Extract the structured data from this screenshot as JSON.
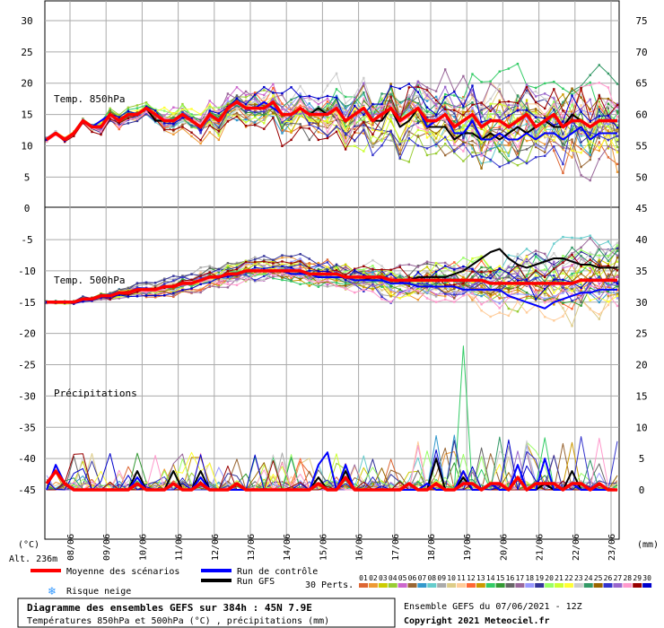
{
  "chart_data": {
    "type": "line",
    "title": "Diagramme des ensembles GEFS sur 384h : 45N 7.9E",
    "subtitle": "Températures 850hPa et 500hPa (°C) , précipitations (mm)",
    "run_label": "Ensemble GEFS du 07/06/2021 - 12Z",
    "copyright": "Copyright 2021 Meteociel.fr",
    "altitude": "Alt. 236m",
    "left_unit": "(°C)",
    "right_unit": "(mm)",
    "dates": [
      "08/06",
      "09/06",
      "10/06",
      "11/06",
      "12/06",
      "13/06",
      "14/06",
      "15/06",
      "16/06",
      "17/06",
      "18/06",
      "19/06",
      "20/06",
      "21/06",
      "22/06",
      "23/06"
    ],
    "left_ticks": [
      {
        "v": 30,
        "label": "30"
      },
      {
        "v": 25,
        "label": "25"
      },
      {
        "v": 20,
        "label": "20"
      },
      {
        "v": 15,
        "label": "15"
      },
      {
        "v": 10,
        "label": "10"
      },
      {
        "v": 5,
        "label": "5"
      },
      {
        "v": 0,
        "label": "0"
      },
      {
        "v": -5,
        "label": "-5"
      },
      {
        "v": -10,
        "label": "-10"
      },
      {
        "v": -15,
        "label": "-15"
      },
      {
        "v": -20,
        "label": "-20"
      },
      {
        "v": -25,
        "label": "-25"
      },
      {
        "v": -30,
        "label": "-30"
      },
      {
        "v": -35,
        "label": "-35"
      },
      {
        "v": -40,
        "label": "-40"
      },
      {
        "v": -45,
        "label": "-45"
      }
    ],
    "right_ticks": [
      {
        "v": 30,
        "label": "75"
      },
      {
        "v": 25,
        "label": "70"
      },
      {
        "v": 20,
        "label": "65"
      },
      {
        "v": 15,
        "label": "60"
      },
      {
        "v": 10,
        "label": "55"
      },
      {
        "v": 5,
        "label": "50"
      },
      {
        "v": 0,
        "label": "45"
      },
      {
        "v": -5,
        "label": "40"
      },
      {
        "v": -10,
        "label": "35"
      },
      {
        "v": -15,
        "label": "30"
      },
      {
        "v": -20,
        "label": "25"
      },
      {
        "v": -25,
        "label": "20"
      },
      {
        "v": -30,
        "label": "15"
      },
      {
        "v": -35,
        "label": "10"
      },
      {
        "v": -40,
        "label": "5"
      },
      {
        "v": -45,
        "label": "0"
      }
    ],
    "panel_labels": [
      "Temp. 850hPa",
      "Temp. 500hPa",
      "Précipitations"
    ],
    "legend": {
      "mean": {
        "label": "Moyenne des scénarios",
        "color": "#ff0000"
      },
      "control": {
        "label": "Run de contrôle",
        "color": "#0000ff"
      },
      "gfs": {
        "label": "Run GFS",
        "color": "#000000"
      },
      "snow": {
        "label": "Risque neige",
        "icon": "snowflake-icon",
        "color": "#3399ff"
      },
      "perts_label": "30 Perts.",
      "perts": [
        "01",
        "02",
        "03",
        "04",
        "05",
        "06",
        "07",
        "08",
        "09",
        "10",
        "11",
        "12",
        "13",
        "14",
        "15",
        "16",
        "17",
        "18",
        "19",
        "20",
        "21",
        "22",
        "23",
        "24",
        "25",
        "26",
        "27",
        "28",
        "29",
        "30"
      ],
      "pert_colors": [
        "#dd6633",
        "#ee9933",
        "#cccc00",
        "#99cc33",
        "#cc66cc",
        "#996633",
        "#3399cc",
        "#66cccc",
        "#aaaaaa",
        "#ddcc88",
        "#ffcc99",
        "#ff6633",
        "#cc9900",
        "#33cc66",
        "#339933",
        "#666666",
        "#996699",
        "#9999ff",
        "#333399",
        "#99ff66",
        "#ccff33",
        "#ffff33",
        "#cccccc",
        "#339966",
        "#996600",
        "#3333cc",
        "#9966cc",
        "#ff99cc",
        "#990000",
        "#0000cc"
      ]
    },
    "series_t850": {
      "mean": [
        11,
        12,
        11,
        12,
        14,
        13,
        13,
        15,
        14,
        15,
        15,
        16,
        15,
        14,
        14,
        15,
        14,
        13,
        15,
        14,
        16,
        17,
        16,
        16,
        16,
        17,
        15,
        15,
        16,
        15,
        15,
        15,
        16,
        14,
        15,
        16,
        14,
        15,
        16,
        14,
        15,
        16,
        14,
        14,
        15,
        13,
        14,
        15,
        13,
        14,
        14,
        13,
        14,
        15,
        13,
        14,
        15,
        13,
        14,
        14,
        13,
        14,
        14,
        14
      ],
      "control": [
        11,
        12,
        11,
        12,
        14,
        13,
        14,
        15,
        14,
        15,
        15,
        16,
        15,
        14,
        14,
        15,
        14,
        13,
        15,
        14,
        16,
        17,
        16,
        16,
        17,
        16,
        15,
        15,
        16,
        15,
        15,
        15,
        16,
        14,
        15,
        16,
        14,
        15,
        16,
        14,
        15,
        16,
        13,
        14,
        15,
        12,
        12,
        14,
        11,
        11,
        12,
        11,
        11,
        12,
        11,
        12,
        12,
        11,
        12,
        13,
        11,
        12,
        12,
        12
      ],
      "gfs": [
        11,
        12,
        11,
        12,
        14,
        13,
        13,
        15,
        14,
        15,
        15,
        16,
        14,
        14,
        14,
        15,
        14,
        13,
        15,
        14,
        16,
        17,
        16,
        16,
        16,
        17,
        15,
        15,
        16,
        15,
        16,
        15,
        16,
        14,
        15,
        16,
        14,
        14,
        16,
        13,
        14,
        16,
        13,
        13,
        13,
        11,
        12,
        12,
        11,
        12,
        11,
        12,
        13,
        12,
        13,
        14,
        13,
        13,
        15,
        14,
        13,
        14,
        14,
        14
      ]
    },
    "series_t500": {
      "mean": [
        -15,
        -15,
        -15,
        -15,
        -14.5,
        -14.5,
        -14,
        -14,
        -13.5,
        -13.5,
        -13,
        -13,
        -13,
        -12.5,
        -12.5,
        -12,
        -12,
        -11.5,
        -11,
        -11,
        -10.5,
        -10.5,
        -10,
        -10,
        -10,
        -10,
        -10,
        -10,
        -10,
        -10.5,
        -10.5,
        -10.5,
        -10.5,
        -11,
        -11,
        -11,
        -11,
        -11,
        -11.5,
        -11.5,
        -11.5,
        -11.5,
        -11.5,
        -11.5,
        -11.5,
        -11.5,
        -11.5,
        -11.5,
        -11.5,
        -12,
        -12,
        -12,
        -12,
        -12,
        -12,
        -12,
        -12,
        -12,
        -12,
        -11.5,
        -11.5,
        -11.5,
        -11.5,
        -11.5
      ],
      "control": [
        -15,
        -15,
        -15,
        -15,
        -14.5,
        -14.5,
        -14,
        -14,
        -13.5,
        -13.5,
        -13,
        -13,
        -13,
        -12.5,
        -12.5,
        -12,
        -12,
        -11.5,
        -11,
        -11,
        -10.5,
        -10.5,
        -10,
        -10,
        -10,
        -10,
        -10,
        -10.5,
        -10.5,
        -10.5,
        -11,
        -11,
        -11,
        -11,
        -11.5,
        -11.5,
        -11.5,
        -11.5,
        -12,
        -12,
        -12,
        -12.5,
        -12.5,
        -12.5,
        -12.5,
        -12.5,
        -13,
        -13,
        -13,
        -13,
        -13,
        -14,
        -14.5,
        -15,
        -15.5,
        -16,
        -15,
        -14.5,
        -14,
        -13.5,
        -13.5,
        -13,
        -13,
        -13
      ],
      "gfs": [
        -15,
        -15,
        -15,
        -15,
        -14.5,
        -14.5,
        -14,
        -14,
        -13.5,
        -13.5,
        -13,
        -13,
        -13,
        -12.5,
        -12.5,
        -12,
        -12,
        -11.5,
        -11,
        -11,
        -10.5,
        -10.5,
        -10,
        -10,
        -10,
        -10,
        -10,
        -10.5,
        -10.5,
        -10.5,
        -11,
        -11,
        -11,
        -11,
        -11.5,
        -11.5,
        -11,
        -11,
        -11.5,
        -11.5,
        -11.5,
        -11,
        -11,
        -11,
        -11,
        -10.5,
        -10,
        -9,
        -8,
        -7,
        -6.5,
        -8,
        -9,
        -9.5,
        -9,
        -8.5,
        -8,
        -8,
        -8.5,
        -9,
        -9,
        -9.5,
        -9.5,
        -9.5
      ]
    },
    "series_precip": {
      "mean": [
        1,
        3,
        1,
        0,
        0,
        0,
        0,
        0,
        0,
        0,
        1,
        0,
        0,
        0,
        1,
        0,
        0,
        1,
        0,
        0,
        0,
        1,
        0,
        0,
        0,
        0,
        0,
        0,
        0,
        0,
        1,
        0,
        0,
        2,
        0,
        0,
        0,
        0,
        0,
        0,
        1,
        0,
        0,
        1,
        0,
        0,
        1,
        1,
        0,
        1,
        1,
        0,
        2,
        0,
        1,
        1,
        1,
        0,
        1,
        1,
        0,
        1,
        0,
        0
      ],
      "control": [
        0,
        4,
        1,
        0,
        0,
        0,
        0,
        0,
        0,
        0,
        2,
        0,
        0,
        0,
        1,
        0,
        0,
        2,
        0,
        0,
        0,
        0,
        0,
        0,
        0,
        0,
        0,
        0,
        0,
        0,
        4,
        6,
        0,
        4,
        0,
        0,
        0,
        0,
        0,
        0,
        0,
        0,
        1,
        0,
        0,
        0,
        3,
        0,
        0,
        1,
        0,
        0,
        4,
        0,
        0,
        5,
        0,
        0,
        1,
        0,
        0,
        0,
        0,
        0
      ],
      "gfs": [
        1,
        3,
        1,
        0,
        0,
        0,
        0,
        0,
        0,
        0,
        3,
        0,
        0,
        0,
        3,
        0,
        0,
        3,
        0,
        0,
        0,
        0,
        0,
        0,
        0,
        0,
        0,
        0,
        0,
        0,
        2,
        0,
        0,
        3,
        0,
        0,
        0,
        0,
        0,
        0,
        1,
        0,
        0,
        5,
        0,
        0,
        2,
        0,
        0,
        1,
        0,
        0,
        2,
        0,
        0,
        1,
        0,
        0,
        3,
        0,
        0,
        1,
        0,
        0
      ]
    },
    "perturbation_spread": {
      "t850_amplitude": [
        0.5,
        0.5,
        0.5,
        0.5,
        0.5,
        0.5,
        1,
        1,
        1,
        1,
        1,
        1,
        1,
        1.5,
        1.5,
        1.5,
        1.5,
        1.5,
        2,
        2,
        2,
        2,
        2.5,
        2.5,
        2.5,
        2.5,
        3,
        3,
        3,
        3,
        3,
        3.5,
        3.5,
        3.5,
        3.5,
        4,
        4,
        4,
        4,
        4,
        4,
        4.5,
        4.5,
        4.5,
        4.5,
        5,
        5,
        5,
        5,
        5,
        5,
        5,
        5.5,
        5.5,
        5.5,
        5.5,
        5.5,
        5.5,
        6,
        6,
        6,
        6,
        6,
        6
      ],
      "t500_amplitude": [
        0.3,
        0.3,
        0.3,
        0.3,
        0.5,
        0.5,
        0.5,
        0.7,
        0.7,
        0.8,
        0.9,
        1,
        1,
        1.1,
        1.2,
        1.3,
        1.4,
        1.5,
        1.5,
        1.6,
        1.7,
        1.8,
        1.8,
        1.9,
        2,
        2,
        2.1,
        2.2,
        2.2,
        2.3,
        2.4,
        2.5,
        2.5,
        2.6,
        2.7,
        2.8,
        2.8,
        2.9,
        3,
        3,
        3.1,
        3.2,
        3.3,
        3.4,
        3.5,
        3.5,
        3.6,
        3.7,
        3.8,
        3.9,
        4,
        4.1,
        4.2,
        4.3,
        4.4,
        4.5,
        4.6,
        4.7,
        4.8,
        4.9,
        5,
        5,
        5,
        5
      ],
      "precip_peak": 23
    }
  }
}
